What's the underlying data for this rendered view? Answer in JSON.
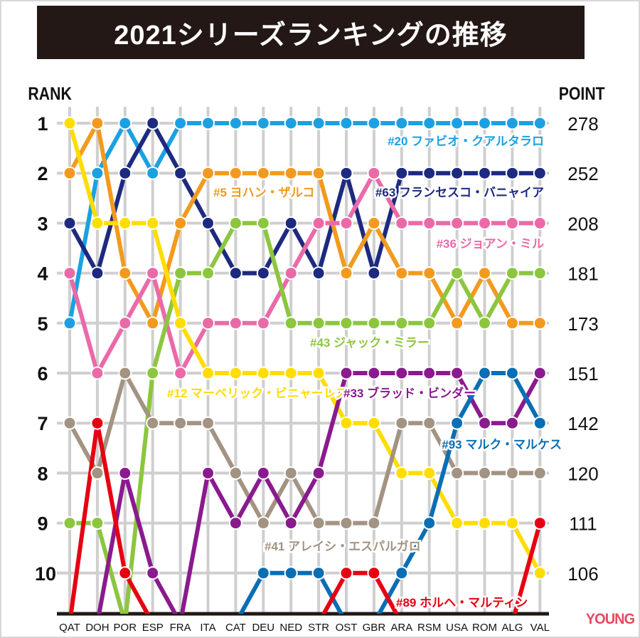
{
  "chart_data": {
    "type": "line",
    "title": "2021シリーズランキングの推移",
    "ylabel": "RANK",
    "y2label": "POINT",
    "categories": [
      "QAT",
      "DOH",
      "POR",
      "ESP",
      "FRA",
      "ITA",
      "CAT",
      "DEU",
      "NED",
      "STR",
      "OST",
      "GBR",
      "ARA",
      "RSM",
      "USA",
      "ROM",
      "ALG",
      "VAL"
    ],
    "yticks": [
      1,
      2,
      3,
      4,
      5,
      6,
      7,
      8,
      9,
      10
    ],
    "y2ticks": [
      "278",
      "252",
      "208",
      "181",
      "173",
      "151",
      "142",
      "120",
      "111",
      "106"
    ],
    "ylim": [
      1,
      10
    ],
    "y_inverted": true,
    "grid": true,
    "series": [
      {
        "name": "#20 ファビオ・クアルタラロ",
        "color": "#1ba1e2",
        "values": [
          5,
          2,
          1,
          2,
          1,
          1,
          1,
          1,
          1,
          1,
          1,
          1,
          1,
          1,
          1,
          1,
          1,
          1
        ]
      },
      {
        "name": "#63 フランセスコ・バニャイア",
        "color": "#1d2a80",
        "values": [
          3,
          4,
          2,
          1,
          2,
          3,
          4,
          4,
          3,
          4,
          2,
          4,
          2,
          2,
          2,
          2,
          2,
          2
        ]
      },
      {
        "name": "#5 ヨハン・ザルコ",
        "color": "#f39a1e",
        "values": [
          2,
          1,
          4,
          5,
          3,
          2,
          2,
          2,
          2,
          2,
          4,
          3,
          4,
          4,
          5,
          4,
          5,
          5
        ]
      },
      {
        "name": "#36 ジョアン・ミル",
        "color": "#ea6aa8",
        "values": [
          4,
          6,
          5,
          4,
          6,
          5,
          5,
          5,
          4,
          3,
          3,
          2,
          3,
          3,
          3,
          3,
          3,
          3
        ]
      },
      {
        "name": "#43 ジャック・ミラー",
        "color": "#8cc63f",
        "values": [
          9,
          9,
          null,
          6,
          4,
          4,
          3,
          3,
          5,
          5,
          5,
          5,
          5,
          5,
          4,
          5,
          4,
          4
        ]
      },
      {
        "name": "#12 マーベリック・ビニャーレス",
        "color": "#ffdd00",
        "values": [
          1,
          3,
          3,
          3,
          5,
          6,
          6,
          6,
          6,
          6,
          7,
          7,
          8,
          8,
          9,
          9,
          9,
          10
        ]
      },
      {
        "name": "#41 アレイシ・エスパルガロ",
        "color": "#a39382",
        "values": [
          7,
          8,
          6,
          7,
          7,
          7,
          8,
          9,
          8,
          9,
          9,
          9,
          7,
          7,
          8,
          8,
          8,
          8
        ]
      },
      {
        "name": "#33 ブラッド・ビンダー",
        "color": "#8a1a8e",
        "values": [
          null,
          null,
          8,
          10,
          null,
          8,
          9,
          8,
          9,
          8,
          6,
          6,
          6,
          6,
          6,
          7,
          7,
          6
        ]
      },
      {
        "name": "#93 マルク・マルケス",
        "color": "#0a6eb4",
        "values": [
          null,
          null,
          null,
          null,
          null,
          null,
          null,
          10,
          10,
          10,
          null,
          null,
          10,
          9,
          7,
          6,
          6,
          7
        ]
      },
      {
        "name": "#89 ホルヘ・マルティン",
        "color": "#e60012",
        "values": [
          null,
          7,
          10,
          null,
          null,
          null,
          null,
          null,
          null,
          null,
          10,
          10,
          null,
          null,
          null,
          null,
          null,
          9
        ]
      }
    ]
  },
  "logo": "YOUNG MACHINE"
}
